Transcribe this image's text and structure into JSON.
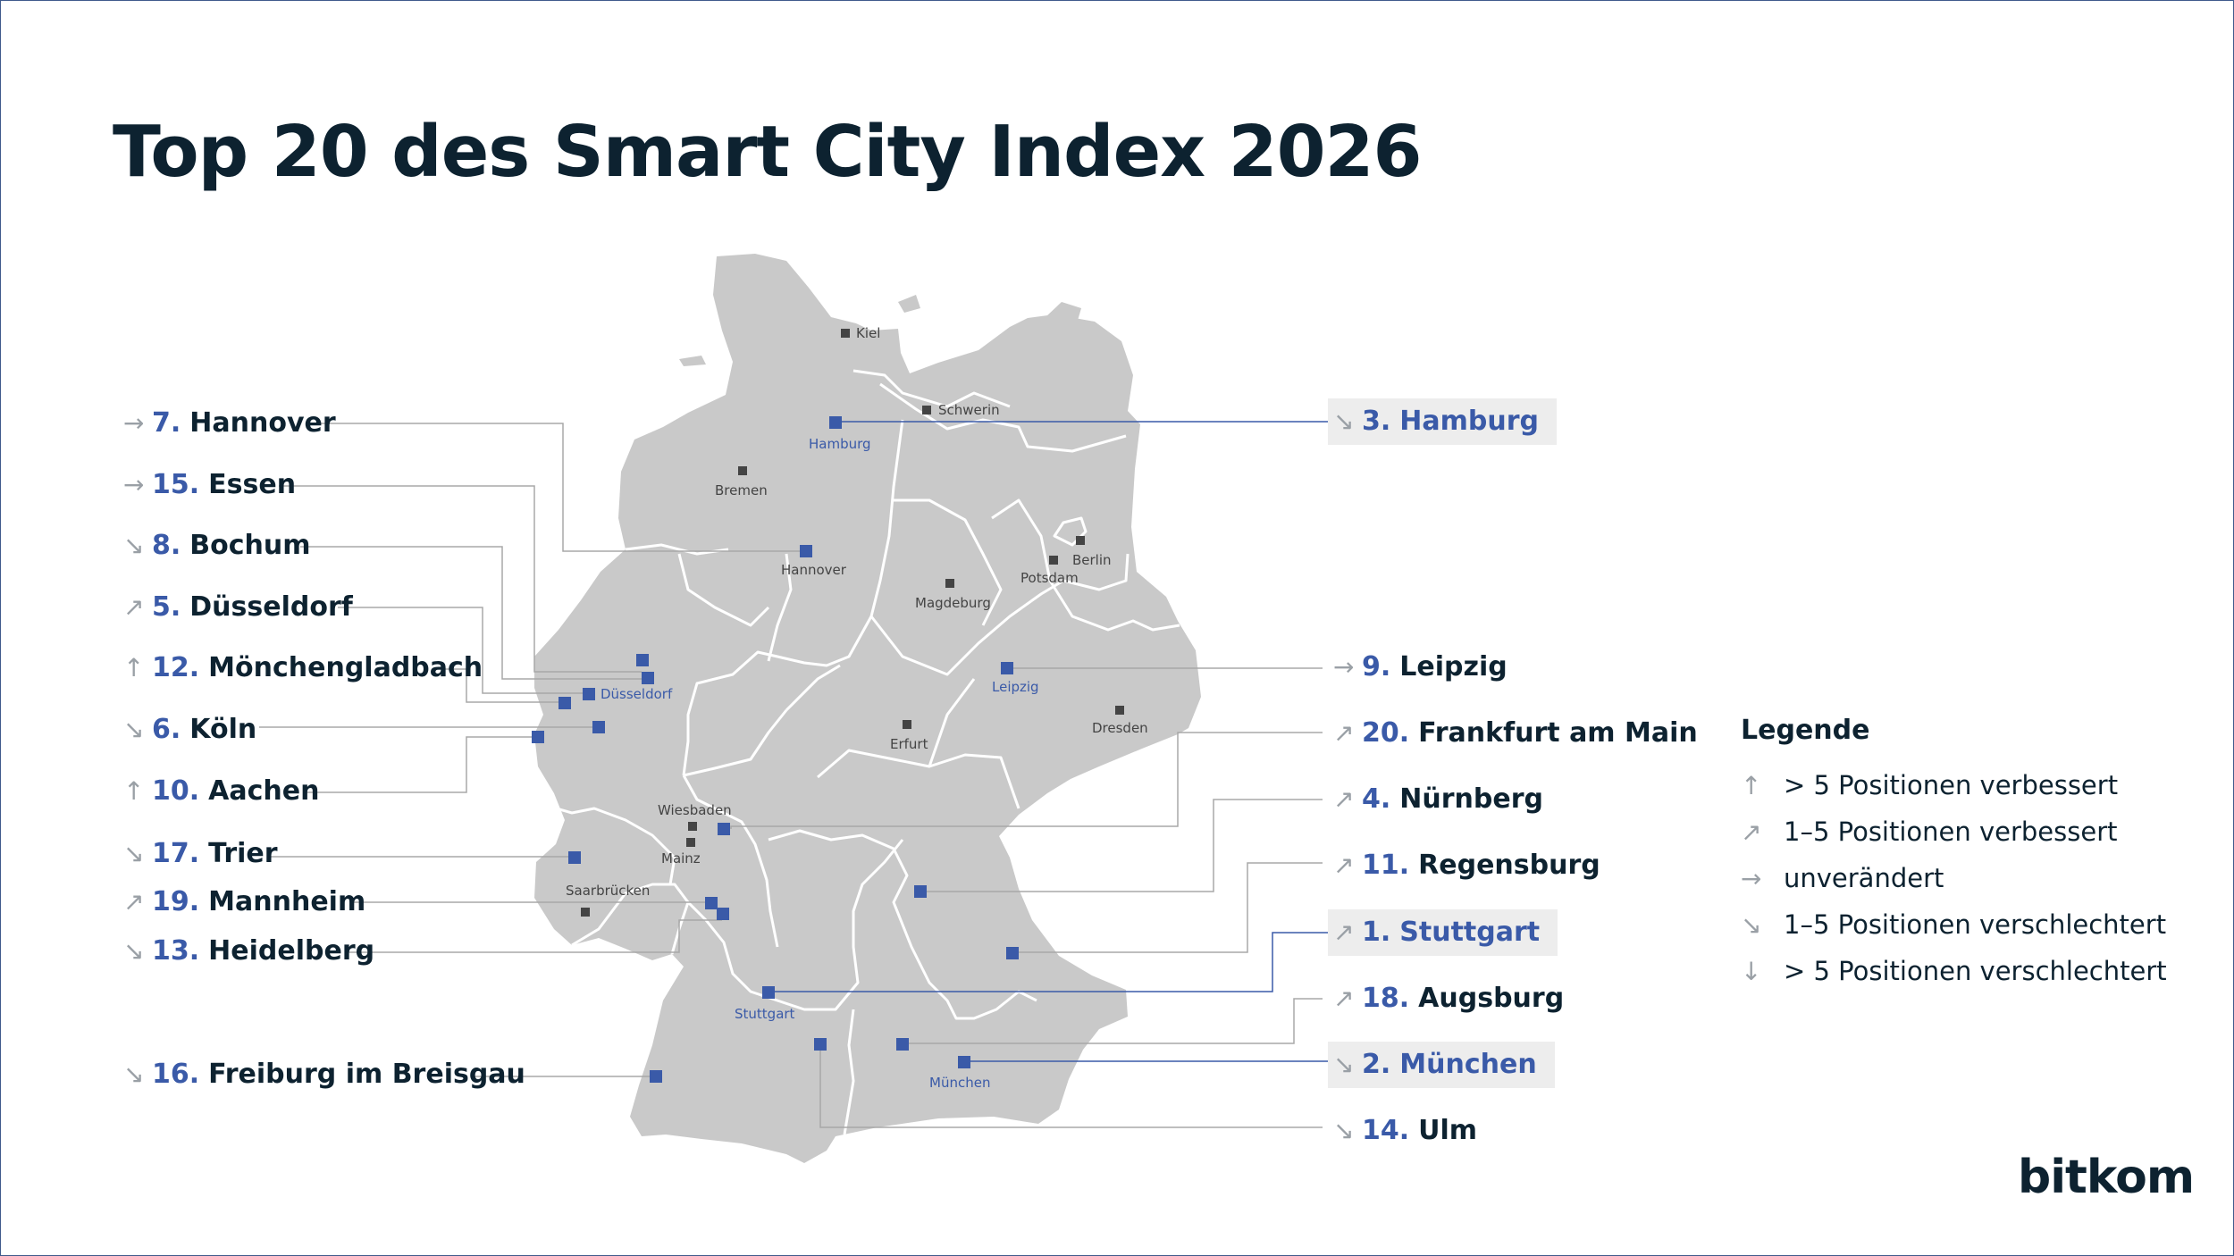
{
  "title": "Top 20 des Smart City Index 2026",
  "colors": {
    "title": "#0d2230",
    "rank_blue": "#3a5aa8",
    "map_fill": "#c9c9c9",
    "highlight_bg": "#ededed",
    "arrow_gray": "#9aa0a6"
  },
  "trend_symbols": {
    "up_strong": "↑",
    "up": "↗",
    "same": "→",
    "down": "↘",
    "down_strong": "↓"
  },
  "rankings_left": [
    {
      "trend": "→",
      "rank": "7.",
      "city": "Hannover"
    },
    {
      "trend": "→",
      "rank": "15.",
      "city": "Essen"
    },
    {
      "trend": "↘",
      "rank": "8.",
      "city": "Bochum"
    },
    {
      "trend": "↗",
      "rank": "5.",
      "city": "Düsseldorf"
    },
    {
      "trend": "↑",
      "rank": "12.",
      "city": "Mönchengladbach"
    },
    {
      "trend": "↘",
      "rank": "6.",
      "city": "Köln"
    },
    {
      "trend": "↑",
      "rank": "10.",
      "city": "Aachen"
    },
    {
      "trend": "↘",
      "rank": "17.",
      "city": "Trier"
    },
    {
      "trend": "↗",
      "rank": "19.",
      "city": "Mannheim"
    },
    {
      "trend": "↘",
      "rank": "13.",
      "city": "Heidelberg"
    },
    {
      "trend": "↘",
      "rank": "16.",
      "city": "Freiburg im Breisgau"
    }
  ],
  "rankings_right": [
    {
      "trend": "↘",
      "rank": "3.",
      "city": "Hamburg",
      "highlight": true
    },
    {
      "trend": "→",
      "rank": "9.",
      "city": "Leipzig",
      "highlight": false
    },
    {
      "trend": "↗",
      "rank": "20.",
      "city": "Frankfurt am Main",
      "highlight": false
    },
    {
      "trend": "↗",
      "rank": "4.",
      "city": "Nürnberg",
      "highlight": false
    },
    {
      "trend": "↗",
      "rank": "11.",
      "city": "Regensburg",
      "highlight": false
    },
    {
      "trend": "↗",
      "rank": "1.",
      "city": "Stuttgart",
      "highlight": true
    },
    {
      "trend": "↗",
      "rank": "18.",
      "city": "Augsburg",
      "highlight": false
    },
    {
      "trend": "↘",
      "rank": "2.",
      "city": "München",
      "highlight": true
    },
    {
      "trend": "↘",
      "rank": "14.",
      "city": "Ulm",
      "highlight": false
    }
  ],
  "map_labels": {
    "kiel": "Kiel",
    "schwerin": "Schwerin",
    "hamburg": "Hamburg",
    "bremen": "Bremen",
    "hannover": "Hannover",
    "berlin": "Berlin",
    "potsdam": "Potsdam",
    "magdeburg": "Magdeburg",
    "duesseldorf": "Düsseldorf",
    "leipzig": "Leipzig",
    "dresden": "Dresden",
    "erfurt": "Erfurt",
    "wiesbaden": "Wiesbaden",
    "mainz": "Mainz",
    "saarbruecken": "Saarbrücken",
    "stuttgart": "Stuttgart",
    "muenchen": "München"
  },
  "legend": {
    "title": "Legende",
    "items": [
      {
        "symbol": "↑",
        "text": "> 5 Positionen verbessert"
      },
      {
        "symbol": "↗",
        "text": "1–5 Positionen verbessert"
      },
      {
        "symbol": "→",
        "text": "unverändert"
      },
      {
        "symbol": "↘",
        "text": "1–5 Positionen verschlechtert"
      },
      {
        "symbol": "↓",
        "text": "> 5 Positionen verschlechtert"
      }
    ]
  },
  "logo": "bitkom"
}
